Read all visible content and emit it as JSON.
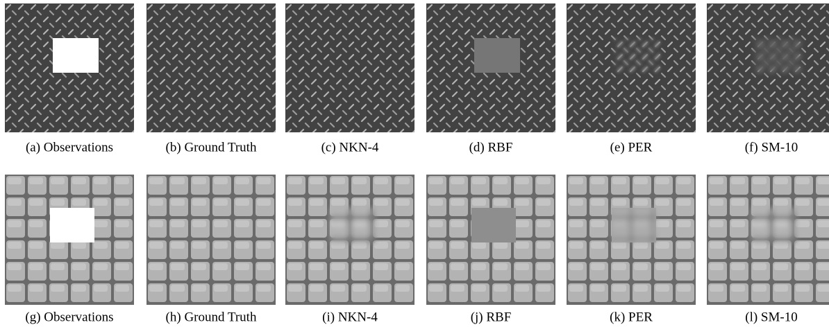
{
  "rows": [
    {
      "panels": [
        {
          "caption": "(a) Observations"
        },
        {
          "caption": "(b) Ground Truth"
        },
        {
          "caption": "(c) NKN-4"
        },
        {
          "caption": "(d) RBF"
        },
        {
          "caption": "(e) PER"
        },
        {
          "caption": "(f) SM-10"
        }
      ]
    },
    {
      "panels": [
        {
          "caption": "(g) Observations"
        },
        {
          "caption": "(h) Ground Truth"
        },
        {
          "caption": "(i) NKN-4"
        },
        {
          "caption": "(j) RBF"
        },
        {
          "caption": "(k) PER"
        },
        {
          "caption": "(l) SM-10"
        }
      ]
    }
  ]
}
